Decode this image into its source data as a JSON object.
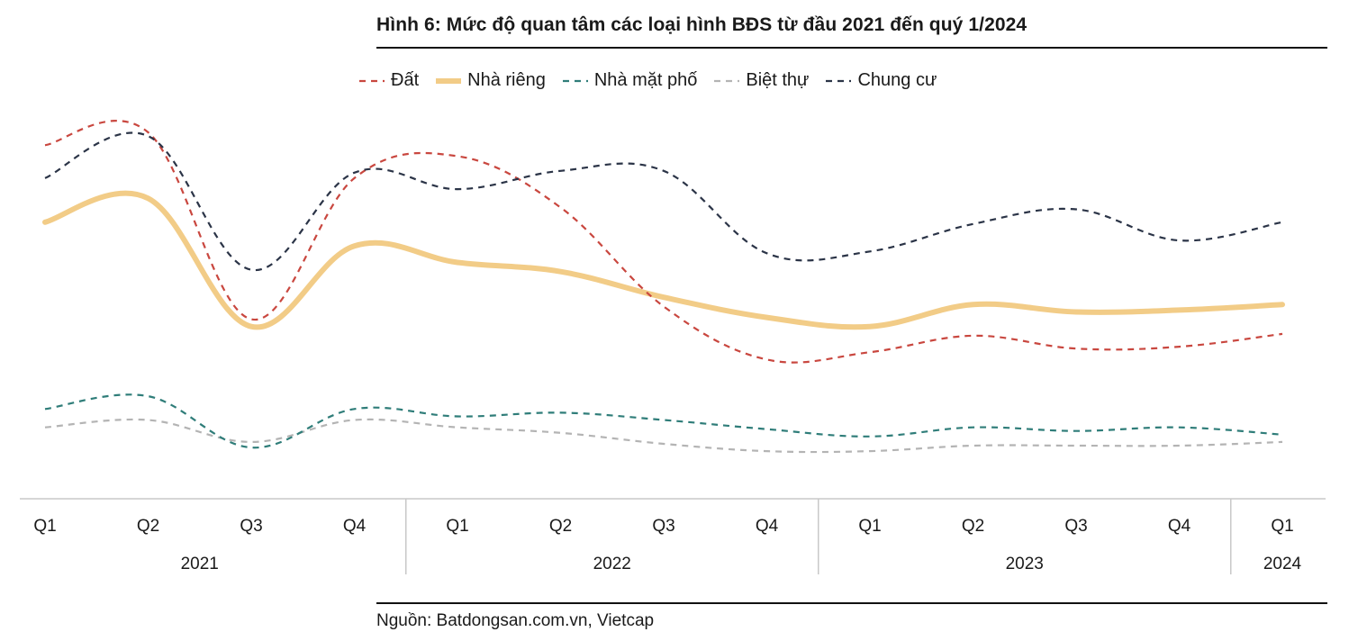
{
  "title": "Hình 6: Mức độ quan tâm các loại hình BĐS từ đầu 2021 đến quý 1/2024",
  "source": "Nguồn: Batdongsan.com.vn, Vietcap",
  "chart_data": {
    "type": "line",
    "title": "Hình 6: Mức độ quan tâm các loại hình BĐS từ đầu 2021 đến quý 1/2024",
    "xlabel": "",
    "ylabel": "",
    "ylim": [
      0,
      100
    ],
    "grid": false,
    "legend_position": "top",
    "categories": [
      "Q1",
      "Q2",
      "Q3",
      "Q4",
      "Q1",
      "Q2",
      "Q3",
      "Q4",
      "Q1",
      "Q2",
      "Q3",
      "Q4",
      "Q1"
    ],
    "year_groups": [
      {
        "label": "2021",
        "start": 0,
        "end": 3
      },
      {
        "label": "2022",
        "start": 4,
        "end": 7
      },
      {
        "label": "2023",
        "start": 8,
        "end": 11
      },
      {
        "label": "2024",
        "start": 12,
        "end": 12
      }
    ],
    "series": [
      {
        "name": "Đất",
        "key": "dat",
        "color": "#c9473f",
        "dash": "7 6",
        "width": 2.2,
        "values": [
          96,
          99.5,
          48.5,
          87,
          93,
          79,
          52,
          37.5,
          39.5,
          44,
          40.5,
          41,
          44.5
        ]
      },
      {
        "name": "Nhà riêng",
        "key": "nha_rieng",
        "color": "#f2cc87",
        "dash": "",
        "width": 6,
        "values": [
          75,
          81.5,
          46.5,
          68.5,
          64,
          61.5,
          54.5,
          49,
          46.5,
          52.5,
          50.5,
          51,
          52.5
        ]
      },
      {
        "name": "Nhà mặt phố",
        "key": "nha_mat_pho",
        "color": "#2f7d79",
        "dash": "7 6",
        "width": 2.2,
        "values": [
          24,
          27.5,
          13.5,
          24,
          22,
          23,
          21,
          18.5,
          16.5,
          19,
          18,
          19,
          17
        ]
      },
      {
        "name": "Biệt thự",
        "key": "biet_thu",
        "color": "#b4b4b4",
        "dash": "7 6",
        "width": 2.2,
        "values": [
          19,
          21,
          15,
          21,
          19,
          17.5,
          14.5,
          12.5,
          12.5,
          14,
          14,
          14,
          15
        ]
      },
      {
        "name": "Chung cư",
        "key": "chung_cu",
        "color": "#2b3447",
        "dash": "7 6",
        "width": 2.2,
        "values": [
          87,
          98.5,
          62,
          88.5,
          84,
          89,
          89,
          66.5,
          67,
          74.5,
          78.5,
          70,
          75
        ]
      }
    ]
  }
}
